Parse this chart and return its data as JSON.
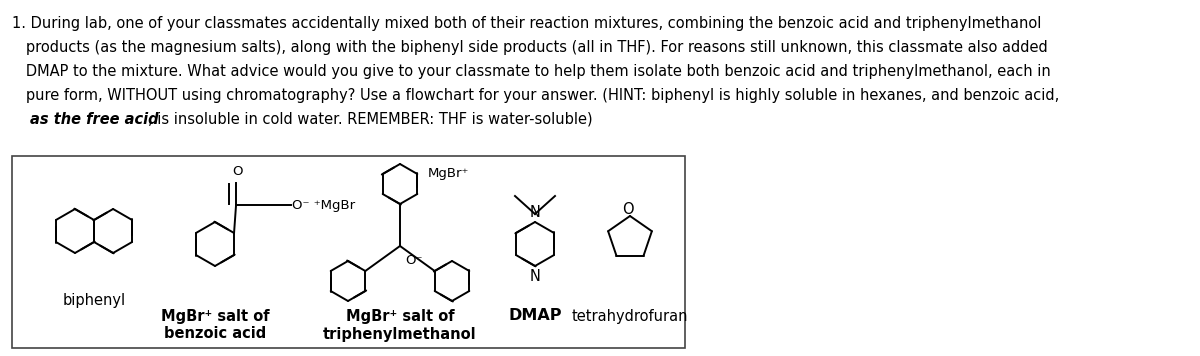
{
  "bg": "#ffffff",
  "lw": 1.4,
  "color": "black",
  "title_lines": [
    "1. During lab, one of your classmates accidentally mixed both of their reaction mixtures, combining the benzoic acid and triphenylmethanol",
    "   products (as the magnesium salts), along with the biphenyl side products (all in THF). For reasons still unknown, this classmate also added",
    "   DMAP to the mixture. What advice would you give to your classmate to help them isolate both benzoic acid and triphenylmethanol, each in",
    "   pure form, WITHOUT using chromatography? Use a flowchart for your answer. (HINT: biphenyl is highly soluble in hexanes, and benzoic acid,",
    "   as the free acid, is insoluble in cold water. REMEMBER: THF is water-soluble)"
  ],
  "bold_start": "as the free acid",
  "title_fontsize": 10.5,
  "label_fontsize": 10.5,
  "chem_fontsize": 9.5
}
